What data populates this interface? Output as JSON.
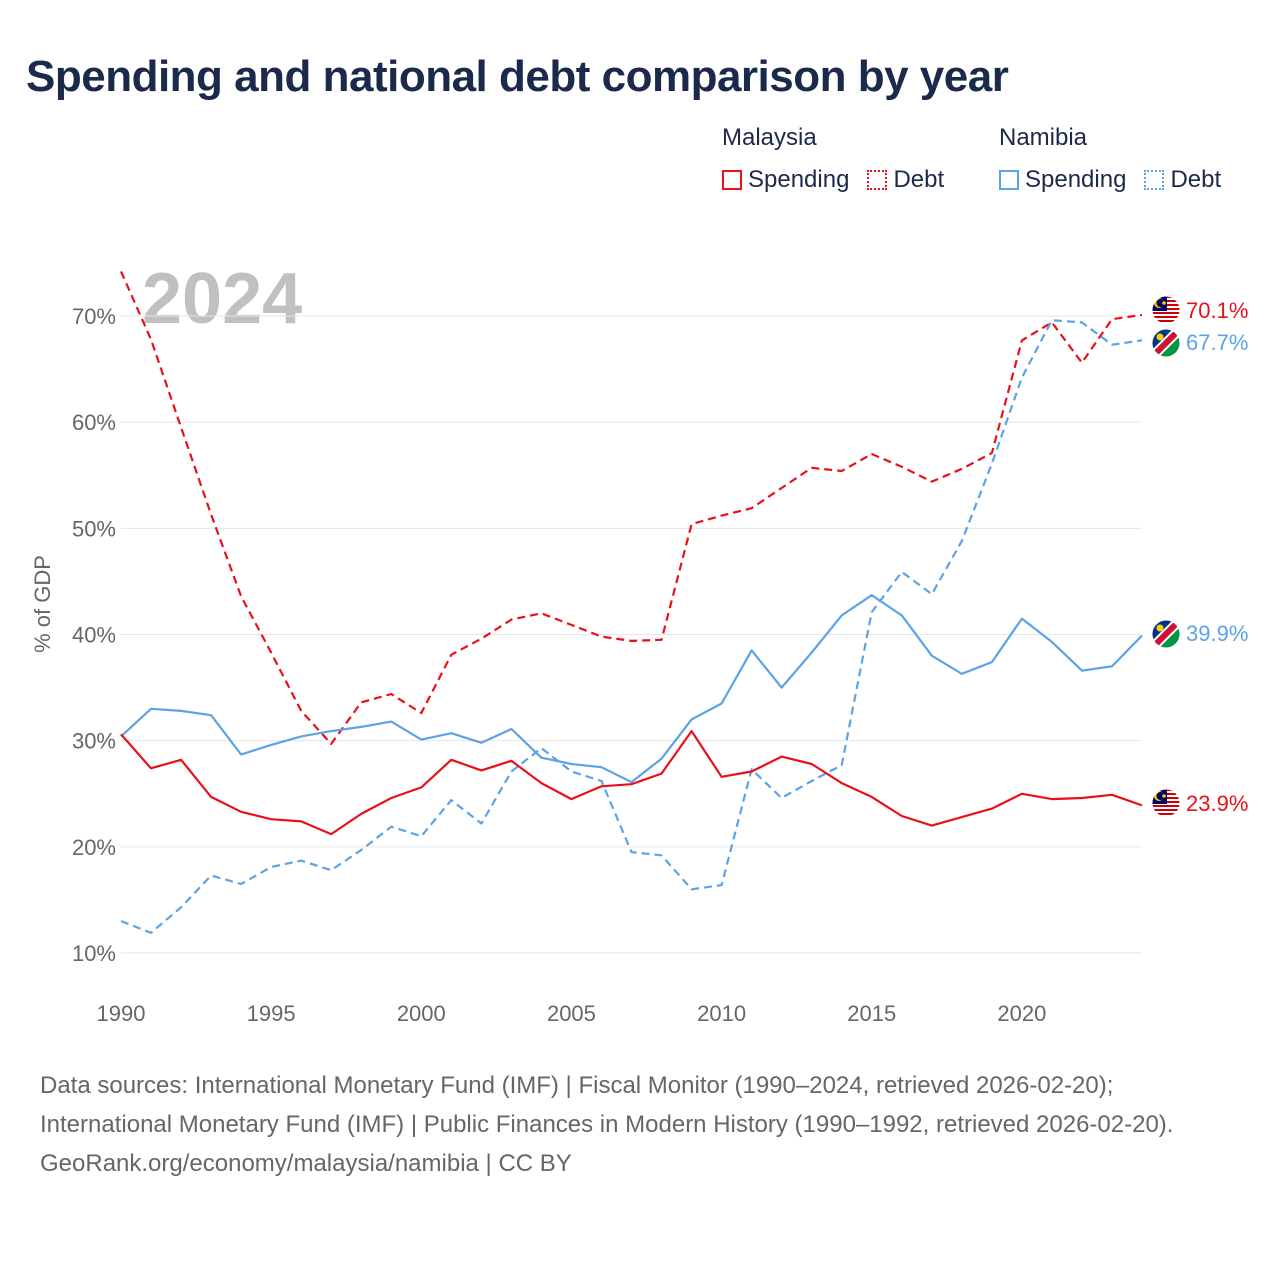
{
  "title": "Spending and national debt comparison by year",
  "legend": {
    "groups": [
      {
        "country": "Malaysia",
        "items": [
          {
            "label": "Spending",
            "style": "solid",
            "color": "#e8101a"
          },
          {
            "label": "Debt",
            "style": "dashed",
            "color": "#e8101a"
          }
        ]
      },
      {
        "country": "Namibia",
        "items": [
          {
            "label": "Spending",
            "style": "solid",
            "color": "#5ba3e6"
          },
          {
            "label": "Debt",
            "style": "dashed",
            "color": "#5ba3e6"
          }
        ]
      }
    ]
  },
  "footer": {
    "sources": "Data sources: International Monetary Fund (IMF) | Fiscal Monitor (1990–2024, retrieved 2026-02-20); International Monetary Fund (IMF) | Public Finances in Modern History (1990–1992, retrieved 2026-02-20).",
    "credit": "GeoRank.org/economy/malaysia/namibia | CC BY"
  },
  "chart_data": {
    "type": "line",
    "year_label": "2024",
    "ylabel": "% of GDP",
    "xlabel": "",
    "xlim": [
      1990,
      2024
    ],
    "ylim": [
      7,
      74
    ],
    "yticks": [
      10,
      20,
      30,
      40,
      50,
      60,
      70
    ],
    "ytick_labels": [
      "10%",
      "20%",
      "30%",
      "40%",
      "50%",
      "60%",
      "70%"
    ],
    "xticks": [
      1990,
      1995,
      2000,
      2005,
      2010,
      2015,
      2020
    ],
    "xtick_labels": [
      "1990",
      "1995",
      "2000",
      "2005",
      "2010",
      "2015",
      "2020"
    ],
    "x": [
      1990,
      1991,
      1992,
      1993,
      1994,
      1995,
      1996,
      1997,
      1998,
      1999,
      2000,
      2001,
      2002,
      2003,
      2004,
      2005,
      2006,
      2007,
      2008,
      2009,
      2010,
      2011,
      2012,
      2013,
      2014,
      2015,
      2016,
      2017,
      2018,
      2019,
      2020,
      2021,
      2022,
      2023,
      2024
    ],
    "series": [
      {
        "name": "Malaysia Debt",
        "country": "Malaysia",
        "color": "#e8101a",
        "dashed": true,
        "end_label": "70.1%",
        "flag": "malaysia",
        "values": [
          74.2,
          67.8,
          59.5,
          51.3,
          43.6,
          38.3,
          32.8,
          29.7,
          33.6,
          34.4,
          32.6,
          38.1,
          39.6,
          41.4,
          42.0,
          40.9,
          39.8,
          39.4,
          39.5,
          50.4,
          51.2,
          51.9,
          53.8,
          55.7,
          55.4,
          57.0,
          55.8,
          54.4,
          55.6,
          57.1,
          67.7,
          69.4,
          65.6,
          69.7,
          70.1
        ]
      },
      {
        "name": "Namibia Debt",
        "country": "Namibia",
        "color": "#5ba3e6",
        "dashed": true,
        "end_label": "67.7%",
        "flag": "namibia",
        "values": [
          13.0,
          11.9,
          14.3,
          17.3,
          16.5,
          18.1,
          18.7,
          17.8,
          19.7,
          21.9,
          21.0,
          24.4,
          22.2,
          27.1,
          29.3,
          27.1,
          26.2,
          19.5,
          19.2,
          16.0,
          16.4,
          27.3,
          24.6,
          26.2,
          27.7,
          42.1,
          45.9,
          43.8,
          48.8,
          56.1,
          64.2,
          69.6,
          69.4,
          67.3,
          67.7
        ]
      },
      {
        "name": "Namibia Spending",
        "country": "Namibia",
        "color": "#5ba3e6",
        "dashed": false,
        "end_label": "39.9%",
        "flag": "namibia",
        "values": [
          30.4,
          33.0,
          32.8,
          32.4,
          28.7,
          29.6,
          30.4,
          30.9,
          31.3,
          31.8,
          30.1,
          30.7,
          29.8,
          31.1,
          28.4,
          27.8,
          27.5,
          26.1,
          28.3,
          32.0,
          33.5,
          38.5,
          35.0,
          38.3,
          41.8,
          43.7,
          41.8,
          38.0,
          36.3,
          37.4,
          41.5,
          39.3,
          36.6,
          37.0,
          39.9
        ]
      },
      {
        "name": "Malaysia Spending",
        "country": "Malaysia",
        "color": "#e8101a",
        "dashed": false,
        "end_label": "23.9%",
        "flag": "malaysia",
        "values": [
          30.6,
          27.4,
          28.2,
          24.7,
          23.3,
          22.6,
          22.4,
          21.2,
          23.1,
          24.6,
          25.6,
          28.2,
          27.2,
          28.1,
          26.0,
          24.5,
          25.7,
          25.9,
          26.9,
          30.9,
          26.6,
          27.1,
          28.5,
          27.8,
          26.0,
          24.7,
          22.9,
          22.0,
          22.8,
          23.6,
          25.0,
          24.5,
          24.6,
          24.9,
          23.9
        ]
      }
    ]
  }
}
